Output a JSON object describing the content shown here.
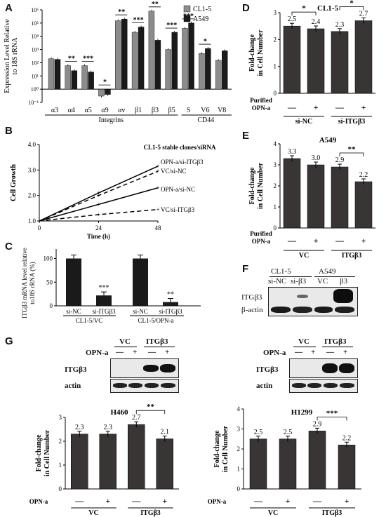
{
  "panel_labels": [
    "A",
    "B",
    "C",
    "D",
    "E",
    "F",
    "G"
  ],
  "chart_data": [
    {
      "id": "A",
      "type": "bar",
      "scale": "log",
      "ylabel": [
        "Expression Level Relative",
        "to 18S rRNA"
      ],
      "ylim": [
        0.1,
        1000000
      ],
      "yticks": [
        "10⁻¹",
        "10⁰",
        "10¹",
        "10²",
        "10³",
        "10⁴",
        "10⁵",
        "10⁶"
      ],
      "categories": [
        "α3",
        "α4",
        "α5",
        "α9",
        "αv",
        "β1",
        "β3",
        "β5",
        "S",
        "V6",
        "V8"
      ],
      "group_labels": [
        "Integrins",
        "CD44"
      ],
      "series": [
        {
          "name": "CL1-5",
          "color": "#8c8c8c",
          "values": [
            200,
            60,
            60,
            0.3,
            150000,
            20000,
            800000,
            1000,
            40000,
            500,
            150
          ]
        },
        {
          "name": "A549",
          "color": "#1a1a1a",
          "values": [
            180,
            25,
            20,
            0.4,
            200000,
            50000,
            5000,
            20000,
            100000,
            1200,
            800
          ]
        }
      ],
      "significance": [
        "",
        "**",
        "***",
        "*",
        "**",
        "***",
        "**",
        "***",
        "***",
        "*",
        ""
      ],
      "legend_position": "top-right"
    },
    {
      "id": "B",
      "type": "line",
      "title": "CL1-5 stable clones/siRNA",
      "ylabel": "Cell Growth",
      "xlabel": "Time (h)",
      "x": [
        0,
        24,
        48
      ],
      "ylim": [
        1.0,
        4.0
      ],
      "yticks": [
        "1.0",
        "2.0",
        "3.0",
        "4.0"
      ],
      "series": [
        {
          "name": "OPN-a/si-ITGβ3",
          "dash": false,
          "values": [
            1.0,
            2.1,
            3.15
          ]
        },
        {
          "name": "VC/si-NC",
          "dash": true,
          "values": [
            1.0,
            2.0,
            2.95
          ]
        },
        {
          "name": "OPN-a/si-NC",
          "dash": false,
          "values": [
            1.0,
            1.65,
            2.3
          ]
        },
        {
          "name": "VC/si-ITGβ3",
          "dash": true,
          "values": [
            1.0,
            1.25,
            1.45
          ]
        }
      ]
    },
    {
      "id": "C",
      "type": "bar",
      "ylabel": [
        "ITGβ3 mRNA level relative",
        "to18S rRNA (%)"
      ],
      "ylim": [
        0,
        120
      ],
      "yticks": [
        "0",
        "50",
        "100"
      ],
      "categories": [
        "si-NC",
        "si-ITGβ3",
        "si-NC",
        "si-ITGβ3"
      ],
      "group_labels": [
        "CL1-5/VC",
        "CL1-5/OPN-a"
      ],
      "values": [
        100,
        22,
        100,
        8
      ],
      "significance": [
        "",
        "***",
        "",
        "**"
      ]
    },
    {
      "id": "D",
      "type": "bar",
      "title": "CL1-5",
      "ylabel": [
        "Fold-change",
        "in Cell Number"
      ],
      "ylim": [
        0,
        3
      ],
      "yticks": [
        "0",
        "1",
        "2",
        "3"
      ],
      "values": [
        2.5,
        2.4,
        2.3,
        2.7
      ],
      "value_labels": [
        "2.5",
        "2.4",
        "2.3",
        "2.7"
      ],
      "treatment_label": [
        "Purified",
        "OPN-a"
      ],
      "signs": [
        "—",
        "+",
        "—",
        "+"
      ],
      "group_labels": [
        "si-NC",
        "si-ITGβ3"
      ],
      "brackets": [
        {
          "between": [
            0,
            1
          ],
          "label": "*"
        },
        {
          "between": [
            2,
            3
          ],
          "label": "*"
        }
      ]
    },
    {
      "id": "E",
      "type": "bar",
      "title": "A549",
      "ylabel": [
        "Fold-change",
        "in Cell Number"
      ],
      "ylim": [
        0,
        4
      ],
      "yticks": [
        "0",
        "1",
        "2",
        "3",
        "4"
      ],
      "values": [
        3.3,
        3.0,
        2.9,
        2.2
      ],
      "value_labels": [
        "3.3",
        "3.0",
        "2.9",
        "2.2"
      ],
      "treatment_label": [
        "Purified",
        "OPN-a"
      ],
      "signs": [
        "—",
        "+",
        "—",
        "+"
      ],
      "group_labels": [
        "VC",
        "ITGβ3"
      ],
      "brackets": [
        {
          "between": [
            2,
            3
          ],
          "label": "**"
        }
      ]
    },
    {
      "id": "G1",
      "type": "bar",
      "title": "H460",
      "ylabel": [
        "Fold-change",
        "in Cell Number"
      ],
      "ylim": [
        0,
        3
      ],
      "yticks": [
        "0",
        "1",
        "2",
        "3"
      ],
      "values": [
        2.3,
        2.3,
        2.7,
        2.1
      ],
      "value_labels": [
        "2.3",
        "2.3",
        "2.7",
        "2.1"
      ],
      "treatment_label": [
        "OPN-a"
      ],
      "signs": [
        "—",
        "+",
        "—",
        "+"
      ],
      "group_labels": [
        "VC",
        "ITGβ3"
      ],
      "brackets": [
        {
          "between": [
            2,
            3
          ],
          "label": "**"
        }
      ]
    },
    {
      "id": "G2",
      "type": "bar",
      "title": "H1299",
      "ylabel": [
        "Fold-change",
        "in Cell Number"
      ],
      "ylim": [
        0,
        4
      ],
      "yticks": [
        "0",
        "1",
        "2",
        "3",
        "4"
      ],
      "values": [
        2.5,
        2.5,
        2.9,
        2.2
      ],
      "value_labels": [
        "2.5",
        "2.5",
        "2.9",
        "2.2"
      ],
      "treatment_label": [
        "OPN-a"
      ],
      "signs": [
        "—",
        "+",
        "—",
        "+"
      ],
      "group_labels": [
        "VC",
        "ITGβ3"
      ],
      "brackets": [
        {
          "between": [
            2,
            3
          ],
          "label": "***"
        }
      ]
    }
  ],
  "blots": {
    "F": {
      "groups": [
        "CL1-5",
        "A549"
      ],
      "lanes": [
        "si-NC",
        "si-β3",
        "VC",
        "β3"
      ],
      "rows": [
        "ITGβ3",
        "β-actin"
      ]
    },
    "G_left": {
      "groups": [
        "VC",
        "ITGβ3"
      ],
      "treatment": "OPN-a",
      "signs": [
        "—",
        "+",
        "—",
        "+"
      ],
      "rows": [
        "ITGβ3",
        "actin"
      ]
    },
    "G_right": {
      "groups": [
        "VC",
        "ITGβ3"
      ],
      "treatment": "OPN-a",
      "signs": [
        "—",
        "+",
        "—",
        "+"
      ],
      "rows": [
        "ITGβ3",
        "actin"
      ]
    }
  }
}
